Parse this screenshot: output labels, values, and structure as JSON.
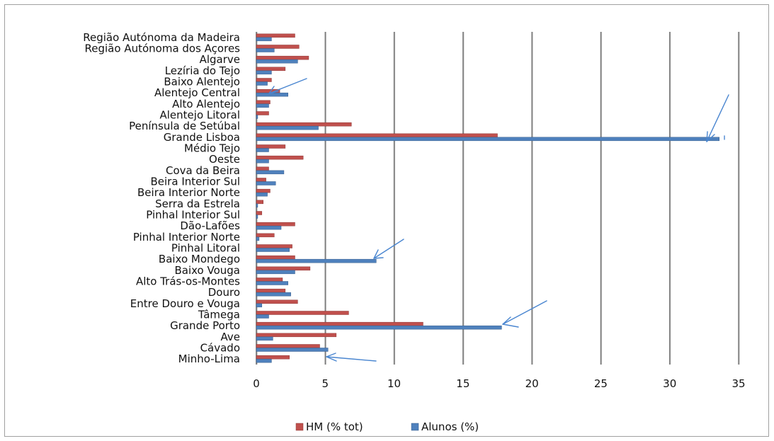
{
  "chart_data": {
    "type": "bar",
    "orientation": "horizontal",
    "categories": [
      "Minho-Lima",
      "Cávado",
      "Ave",
      "Grande Porto",
      "Tâmega",
      "Entre Douro e Vouga",
      "Douro",
      "Alto Trás-os-Montes",
      "Baixo Vouga",
      "Baixo Mondego",
      "Pinhal Litoral",
      "Pinhal Interior Norte",
      "Dão-Lafões",
      "Pinhal Interior Sul",
      "Serra da Estrela",
      "Beira Interior Norte",
      "Beira Interior Sul",
      "Cova da Beira",
      "Oeste",
      "Médio Tejo",
      "Grande Lisboa",
      "Península de Setúbal",
      "Alentejo Litoral",
      "Alto Alentejo",
      "Alentejo Central",
      "Baixo Alentejo",
      "Lezíria do Tejo",
      "Algarve",
      "Região Autónoma dos Açores",
      "Região Autónoma da Madeira"
    ],
    "series": [
      {
        "name": "HM (% tot)",
        "color": "#c0504d",
        "values": [
          2.4,
          4.6,
          5.8,
          12.1,
          6.7,
          3.0,
          2.1,
          1.9,
          3.9,
          2.8,
          2.6,
          1.3,
          2.8,
          0.4,
          0.5,
          1.0,
          0.7,
          0.9,
          3.4,
          2.1,
          17.5,
          6.9,
          0.9,
          1.0,
          1.7,
          1.1,
          2.1,
          3.8,
          3.1,
          2.8
        ]
      },
      {
        "name": "Alunos (%)",
        "color": "#4f81bd",
        "values": [
          1.1,
          5.2,
          1.2,
          17.8,
          0.9,
          0.4,
          2.5,
          2.3,
          2.8,
          8.7,
          2.4,
          0.2,
          1.8,
          0.1,
          0.1,
          0.8,
          1.4,
          2.0,
          0.9,
          0.9,
          33.6,
          4.5,
          0.1,
          0.9,
          2.3,
          0.8,
          1.1,
          3.0,
          1.3,
          1.1
        ]
      }
    ],
    "xticks": [
      "0",
      "5",
      "10",
      "15",
      "20",
      "25",
      "30",
      "35"
    ],
    "xlim": [
      0,
      35
    ],
    "grid": "vertical",
    "legend_position": "bottom",
    "annotations": "hand-drawn blue arrows pointing at bars"
  }
}
